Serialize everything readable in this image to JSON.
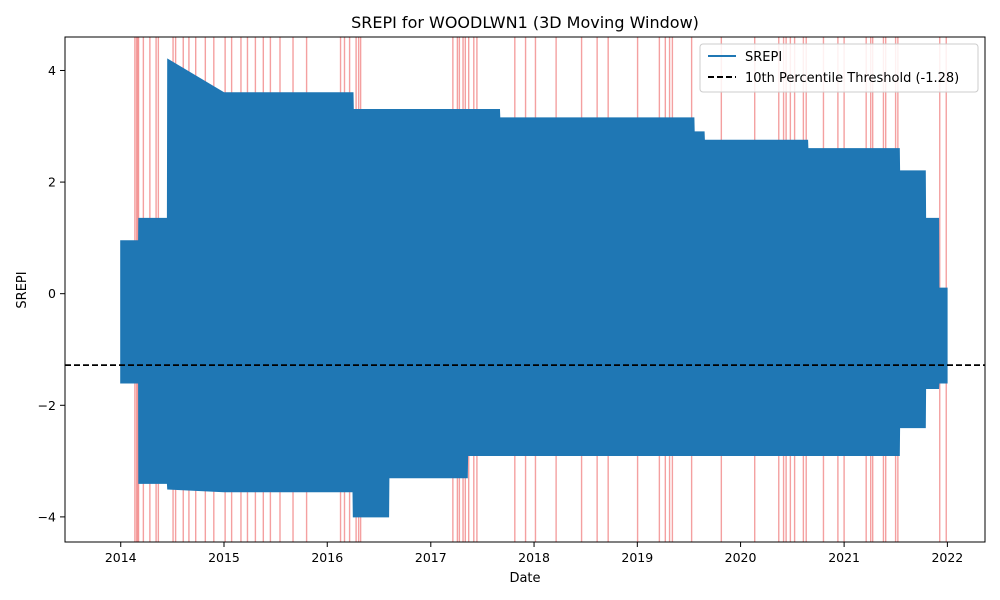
{
  "chart_data": {
    "type": "line",
    "title": "SREPI for WOODLWN1 (3D Moving Window)",
    "xlabel": "Date",
    "ylabel": "SREPI",
    "xlim": [
      "2013-06-18",
      "2022-05-14"
    ],
    "ylim": [
      -4.45,
      4.6
    ],
    "x_ticks": [
      "2014",
      "2015",
      "2016",
      "2017",
      "2018",
      "2019",
      "2020",
      "2021",
      "2022"
    ],
    "y_ticks": [
      -4,
      -2,
      0,
      2,
      4
    ],
    "grid": false,
    "legend_position": "top-right",
    "colors": {
      "series": "#1f77b4",
      "threshold": "#000000",
      "drought_spans": "#f08080"
    },
    "series": [
      {
        "name": "SREPI",
        "envelope": [
          {
            "x": "2014-01-01",
            "y_min": -1.6,
            "y_max": 0.95
          },
          {
            "x": "2014-03-05",
            "y_min": -1.6,
            "y_max": 0.95
          },
          {
            "x": "2014-03-06",
            "y_min": -3.4,
            "y_max": 1.35
          },
          {
            "x": "2014-06-15",
            "y_min": -3.4,
            "y_max": 1.35
          },
          {
            "x": "2014-06-16",
            "y_min": -3.5,
            "y_max": 4.2
          },
          {
            "x": "2015-01-01",
            "y_min": -3.55,
            "y_max": 3.6
          },
          {
            "x": "2016-04-01",
            "y_min": -3.55,
            "y_max": 3.6
          },
          {
            "x": "2016-04-02",
            "y_min": -4.0,
            "y_max": 3.3
          },
          {
            "x": "2016-08-05",
            "y_min": -4.0,
            "y_max": 3.3
          },
          {
            "x": "2016-08-06",
            "y_min": -3.3,
            "y_max": 3.3
          },
          {
            "x": "2017-05-10",
            "y_min": -3.3,
            "y_max": 3.3
          },
          {
            "x": "2017-05-11",
            "y_min": -2.9,
            "y_max": 3.3
          },
          {
            "x": "2017-09-01",
            "y_min": -2.9,
            "y_max": 3.3
          },
          {
            "x": "2017-09-02",
            "y_min": -2.9,
            "y_max": 3.15
          },
          {
            "x": "2019-07-20",
            "y_min": -2.9,
            "y_max": 3.15
          },
          {
            "x": "2019-07-21",
            "y_min": -2.9,
            "y_max": 2.9
          },
          {
            "x": "2019-08-25",
            "y_min": -2.9,
            "y_max": 2.9
          },
          {
            "x": "2019-08-26",
            "y_min": -2.9,
            "y_max": 2.75
          },
          {
            "x": "2020-08-25",
            "y_min": -2.9,
            "y_max": 2.75
          },
          {
            "x": "2020-08-26",
            "y_min": -2.9,
            "y_max": 2.6
          },
          {
            "x": "2021-07-15",
            "y_min": -2.9,
            "y_max": 2.6
          },
          {
            "x": "2021-07-16",
            "y_min": -2.4,
            "y_max": 2.2
          },
          {
            "x": "2021-10-15",
            "y_min": -2.4,
            "y_max": 2.2
          },
          {
            "x": "2021-10-16",
            "y_min": -1.7,
            "y_max": 1.35
          },
          {
            "x": "2021-12-01",
            "y_min": -1.7,
            "y_max": 1.35
          },
          {
            "x": "2021-12-02",
            "y_min": -1.6,
            "y_max": 0.1
          },
          {
            "x": "2021-12-31",
            "y_min": -1.6,
            "y_max": 0.1
          }
        ]
      },
      {
        "name": "10th Percentile Threshold (-1.28)",
        "y": -1.28,
        "style": "dashed"
      }
    ],
    "drought_spans": [
      "2014-02-20",
      "2014-02-26",
      "2014-03-02",
      "2014-03-05",
      "2014-03-22",
      "2014-04-14",
      "2014-05-06",
      "2014-05-14",
      "2014-07-05",
      "2014-07-14",
      "2014-08-10",
      "2014-08-30",
      "2014-09-23",
      "2014-10-27",
      "2014-11-26",
      "2015-01-05",
      "2015-01-28",
      "2015-03-02",
      "2015-03-25",
      "2015-04-22",
      "2015-05-20",
      "2015-06-14",
      "2015-07-18",
      "2015-09-02",
      "2015-10-20",
      "2016-02-17",
      "2016-03-02",
      "2016-03-20",
      "2016-04-12",
      "2016-04-21",
      "2016-04-28",
      "2017-03-20",
      "2017-04-05",
      "2017-04-12",
      "2017-04-25",
      "2017-05-03",
      "2017-05-15",
      "2017-06-02",
      "2017-06-13",
      "2017-10-25",
      "2017-12-02",
      "2018-01-06",
      "2018-03-20",
      "2018-06-18",
      "2018-08-12",
      "2018-09-20",
      "2019-01-02",
      "2019-03-20",
      "2019-04-10",
      "2019-04-25",
      "2019-05-05",
      "2019-07-12",
      "2019-10-25",
      "2020-02-20",
      "2020-05-15",
      "2020-06-01",
      "2020-06-10",
      "2020-06-25",
      "2020-07-10",
      "2020-08-10",
      "2020-08-20",
      "2020-10-20",
      "2020-12-10",
      "2021-01-01",
      "2021-03-20",
      "2021-04-05",
      "2021-04-12",
      "2021-05-20",
      "2021-05-28",
      "2021-07-02",
      "2021-07-10",
      "2021-12-05",
      "2021-12-28"
    ]
  }
}
